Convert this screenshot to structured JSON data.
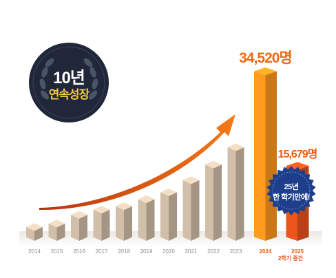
{
  "badge": {
    "line1": "10년",
    "line2": "연속성장"
  },
  "highlight_note": {
    "line1": "25년",
    "line2": "한 학기만에!"
  },
  "colors": {
    "past_bar": "#c8b6a1",
    "bar_2024": "#f7941d",
    "bar_2025": "#e0501a",
    "arrow": "#f26a16",
    "badge_bg": "#1f2738",
    "seal_bg": "#1d3e8a"
  },
  "chart_data": {
    "type": "bar",
    "categories": [
      "2014",
      "2015",
      "2016",
      "2017",
      "2018",
      "2019",
      "2020",
      "2021",
      "2022",
      "2023",
      "2024",
      "2025"
    ],
    "category_notes": {
      "2025": "2학기 중간"
    },
    "values": [
      null,
      null,
      null,
      null,
      null,
      null,
      null,
      null,
      null,
      null,
      34520,
      15679
    ],
    "value_labels": {
      "2024": "34,520명",
      "2025": "15,679명"
    },
    "relative_heights_unlabeled": [
      0.07,
      0.09,
      0.14,
      0.17,
      0.19,
      0.23,
      0.27,
      0.34,
      0.43,
      0.53
    ],
    "xlabel": "",
    "ylabel": "",
    "grid": false,
    "legend": "none",
    "annotation": "rising arrow from 2014 toward 2024"
  }
}
